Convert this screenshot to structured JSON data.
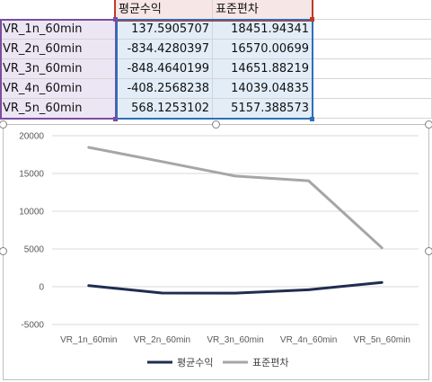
{
  "sheet": {
    "headers": [
      "평균수익",
      "표준편차"
    ],
    "rows": [
      {
        "label": "VR_1n_60min",
        "mean": "137.5905707",
        "std": "18451.94341"
      },
      {
        "label": "VR_2n_60min",
        "mean": "-834.4280397",
        "std": "16570.00699"
      },
      {
        "label": "VR_3n_60min",
        "mean": "-848.4640199",
        "std": "14651.88219"
      },
      {
        "label": "VR_4n_60min",
        "mean": "-408.2568238",
        "std": "14039.04835"
      },
      {
        "label": "VR_5n_60min",
        "mean": "568.1253102",
        "std": "5157.388573"
      }
    ]
  },
  "colors": {
    "series_mean": "#1f2d4f",
    "series_std": "#a6a6a6",
    "gridline": "#d9d9d9"
  },
  "chart_data": {
    "type": "line",
    "categories": [
      "VR_1n_60min",
      "VR_2n_60min",
      "VR_3n_60min",
      "VR_4n_60min",
      "VR_5n_60min"
    ],
    "series": [
      {
        "name": "평균수익",
        "values": [
          137.5905707,
          -834.4280397,
          -848.4640199,
          -408.2568238,
          568.1253102
        ]
      },
      {
        "name": "표준편차",
        "values": [
          18451.94341,
          16570.00699,
          14651.88219,
          14039.04835,
          5157.388573
        ]
      }
    ],
    "ylim": [
      -5000,
      20000
    ],
    "yticks": [
      "20000",
      "15000",
      "10000",
      "5000",
      "0",
      "-5000"
    ],
    "grid": true,
    "legend": "bottom"
  }
}
